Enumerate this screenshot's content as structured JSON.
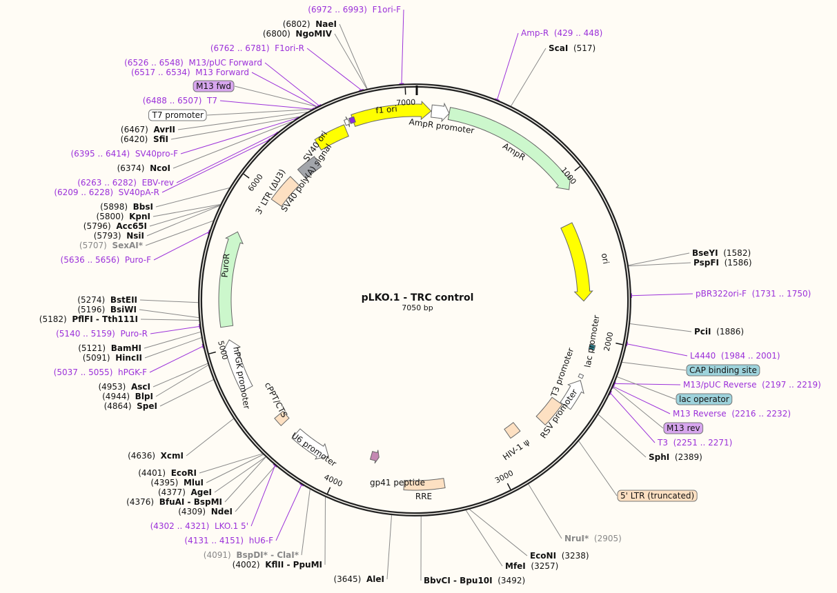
{
  "title": "pLKO.1 - TRC control",
  "length_label": "7050 bp",
  "total_bp": 7050,
  "colors": {
    "site_line": "#888888",
    "primer": "#9b30d9",
    "backbone": "#222222",
    "background": "#fffcf5"
  },
  "ticks": [
    "1000",
    "2000",
    "3000",
    "4000",
    "5000",
    "6000",
    "7000"
  ],
  "annotations": [
    {
      "kind": "primer",
      "name": "Amp-R",
      "loc": "(429 .. 448)",
      "pos": 438
    },
    {
      "kind": "site",
      "name": "ScaI",
      "loc": "(517)",
      "pos": 517
    },
    {
      "kind": "site",
      "name": "BseYI",
      "loc": "(1582)",
      "pos": 1582
    },
    {
      "kind": "site",
      "name": "PspFI",
      "loc": "(1586)",
      "pos": 1586
    },
    {
      "kind": "primer",
      "name": "pBR322ori-F",
      "loc": "(1731 .. 1750)",
      "pos": 1740
    },
    {
      "kind": "site",
      "name": "PciI",
      "loc": "(1886)",
      "pos": 1886
    },
    {
      "kind": "primer",
      "name": "L4440",
      "loc": "(1984 .. 2001)",
      "pos": 1992
    },
    {
      "kind": "box",
      "name": "CAP binding site",
      "pos": 2090,
      "color": "#9ed3dc"
    },
    {
      "kind": "primer",
      "name": "M13/pUC Reverse",
      "loc": "(2197 .. 2219)",
      "pos": 2208
    },
    {
      "kind": "box",
      "name": "lac operator",
      "pos": 2170,
      "color": "#9ed3dc"
    },
    {
      "kind": "primer",
      "name": "M13 Reverse",
      "loc": "(2216 .. 2232)",
      "pos": 2224
    },
    {
      "kind": "box",
      "name": "M13 rev",
      "pos": 2228,
      "color": "#d7a6ee"
    },
    {
      "kind": "primer",
      "name": "T3",
      "loc": "(2251 .. 2271)",
      "pos": 2261
    },
    {
      "kind": "site",
      "name": "SphI",
      "loc": "(2389)",
      "pos": 2389
    },
    {
      "kind": "box",
      "name": "5' LTR (truncated)",
      "pos": 2560,
      "color": "#fde0c2"
    },
    {
      "kind": "site",
      "name": "NruI*",
      "loc": "(2905)",
      "pos": 2905,
      "gray": true
    },
    {
      "kind": "site",
      "name": "EcoNI",
      "loc": "(3238)",
      "pos": 3238
    },
    {
      "kind": "site",
      "name": "MfeI",
      "loc": "(3257)",
      "pos": 3257
    },
    {
      "kind": "site",
      "name": "BbvCI - Bpu10I",
      "loc": "(3492)",
      "pos": 3492
    },
    {
      "kind": "site",
      "name": "AleI",
      "loc": "(3645)",
      "pos": 3645
    },
    {
      "kind": "primer",
      "name": "F1ori-F",
      "loc": "(6972 .. 6993)",
      "pos": 6982
    },
    {
      "kind": "site",
      "name": "NaeI",
      "loc": "(6802)",
      "pos": 6802
    },
    {
      "kind": "site",
      "name": "NgoMIV",
      "loc": "(6800)",
      "pos": 6800
    },
    {
      "kind": "primer",
      "name": "F1ori-R",
      "loc": "(6762 .. 6781)",
      "pos": 6771
    },
    {
      "kind": "primer",
      "name": "M13/pUC Forward",
      "loc": "(6526 .. 6548)",
      "pos": 6537
    },
    {
      "kind": "primer",
      "name": "M13 Forward",
      "loc": "(6517 .. 6534)",
      "pos": 6525
    },
    {
      "kind": "box",
      "name": "M13 fwd",
      "pos": 6525,
      "color": "#d7a6ee"
    },
    {
      "kind": "primer",
      "name": "T7",
      "loc": "(6488 .. 6507)",
      "pos": 6497
    },
    {
      "kind": "box",
      "name": "T7 promoter",
      "pos": 6495,
      "color": "#ffffff"
    },
    {
      "kind": "site",
      "name": "AvrII",
      "loc": "(6467)",
      "pos": 6467
    },
    {
      "kind": "site",
      "name": "SfiI",
      "loc": "(6420)",
      "pos": 6420
    },
    {
      "kind": "primer",
      "name": "SV40pro-F",
      "loc": "(6395 .. 6414)",
      "pos": 6404
    },
    {
      "kind": "site",
      "name": "NcoI",
      "loc": "(6374)",
      "pos": 6374
    },
    {
      "kind": "primer",
      "name": "EBV-rev",
      "loc": "(6263 .. 6282)",
      "pos": 6272
    },
    {
      "kind": "primer",
      "name": "SV40pA-R",
      "loc": "(6209 .. 6228)",
      "pos": 6218
    },
    {
      "kind": "site",
      "name": "BbsI",
      "loc": "(5898)",
      "pos": 5898
    },
    {
      "kind": "site",
      "name": "KpnI",
      "loc": "(5800)",
      "pos": 5800
    },
    {
      "kind": "site",
      "name": "Acc65I",
      "loc": "(5796)",
      "pos": 5796
    },
    {
      "kind": "site",
      "name": "NsiI",
      "loc": "(5793)",
      "pos": 5793
    },
    {
      "kind": "site",
      "name": "SexAI*",
      "loc": "(5707)",
      "pos": 5707,
      "gray": true
    },
    {
      "kind": "primer",
      "name": "Puro-F",
      "loc": "(5636 .. 5656)",
      "pos": 5646
    },
    {
      "kind": "site",
      "name": "BstEII",
      "loc": "(5274)",
      "pos": 5274
    },
    {
      "kind": "site",
      "name": "BsiWI",
      "loc": "(5196)",
      "pos": 5196
    },
    {
      "kind": "site",
      "name": "PflFI - Tth111I",
      "loc": "(5182)",
      "pos": 5182
    },
    {
      "kind": "primer",
      "name": "Puro-R",
      "loc": "(5140 .. 5159)",
      "pos": 5150
    },
    {
      "kind": "site",
      "name": "BamHI",
      "loc": "(5121)",
      "pos": 5121
    },
    {
      "kind": "site",
      "name": "HincII",
      "loc": "(5091)",
      "pos": 5091
    },
    {
      "kind": "primer",
      "name": "hPGK-F",
      "loc": "(5037 .. 5055)",
      "pos": 5046
    },
    {
      "kind": "site",
      "name": "AscI",
      "loc": "(4953)",
      "pos": 4953
    },
    {
      "kind": "site",
      "name": "BlpI",
      "loc": "(4944)",
      "pos": 4944
    },
    {
      "kind": "site",
      "name": "SpeI",
      "loc": "(4864)",
      "pos": 4864
    },
    {
      "kind": "site",
      "name": "XcmI",
      "loc": "(4636)",
      "pos": 4636
    },
    {
      "kind": "site",
      "name": "EcoRI",
      "loc": "(4401)",
      "pos": 4401
    },
    {
      "kind": "site",
      "name": "MluI",
      "loc": "(4395)",
      "pos": 4395
    },
    {
      "kind": "site",
      "name": "AgeI",
      "loc": "(4377)",
      "pos": 4377
    },
    {
      "kind": "site",
      "name": "BfuAI - BspMI",
      "loc": "(4376)",
      "pos": 4376
    },
    {
      "kind": "site",
      "name": "NdeI",
      "loc": "(4309)",
      "pos": 4309
    },
    {
      "kind": "primer",
      "name": "LKO.1 5'",
      "loc": "(4302 .. 4321)",
      "pos": 4311
    },
    {
      "kind": "primer",
      "name": "hU6-F",
      "loc": "(4131 .. 4151)",
      "pos": 4141
    },
    {
      "kind": "site",
      "name": "BspDI* - ClaI*",
      "loc": "(4091)",
      "pos": 4091,
      "gray": true
    },
    {
      "kind": "site",
      "name": "KflII - PpuMI",
      "loc": "(4002)",
      "pos": 4002
    }
  ],
  "features": [
    {
      "name": "f1 ori",
      "start": 6679,
      "end": 97,
      "color": "#ffff00",
      "dir": 1
    },
    {
      "name": "AmpR promoter",
      "start": 100,
      "end": 205,
      "color": "#ffffff",
      "dir": 1
    },
    {
      "name": "AmpR",
      "start": 205,
      "end": 1066,
      "color": "#ccf7cc",
      "dir": 1
    },
    {
      "name": "ori",
      "start": 1250,
      "end": 1770,
      "color": "#ffff00",
      "dir": 1
    },
    {
      "name": "lac promoter",
      "start": 2040,
      "end": 2070,
      "color": "#2b7f8c",
      "dir": 0
    },
    {
      "name": "T3 promoter",
      "start": 2235,
      "end": 2255,
      "color": "#ffffff",
      "dir": 0
    },
    {
      "name": "RSV promoter",
      "start": 2270,
      "end": 2450,
      "color": "#ffffff",
      "dir": -1
    },
    {
      "name": "5' LTR (truncated)",
      "start": 2455,
      "end": 2620,
      "color": "#fde0c2",
      "dir": 0
    },
    {
      "name": "HIV-1 ψ",
      "start": 2765,
      "end": 2845,
      "color": "#fde0c2",
      "dir": 0
    },
    {
      "name": "RRE",
      "start": 3345,
      "end": 3590,
      "color": "#fde0c2",
      "dir": 0
    },
    {
      "name": "gp41 peptide",
      "start": 3775,
      "end": 3830,
      "color": "#c489b3",
      "dir": -1
    },
    {
      "name": "cPPT/CTS",
      "start": 4440,
      "end": 4500,
      "color": "#fde0c2",
      "dir": 0
    },
    {
      "name": "U6 promoter",
      "start": 4090,
      "end": 4340,
      "color": "#ffffff",
      "dir": -1
    },
    {
      "name": "hPGK promoter",
      "start": 4740,
      "end": 5050,
      "color": "#ffffff",
      "dir": 1
    },
    {
      "name": "PuroR",
      "start": 5130,
      "end": 5700,
      "color": "#ccf7cc",
      "dir": 1
    },
    {
      "name": "3' LTR (ΔU3)",
      "start": 5975,
      "end": 6165,
      "color": "#fde0c2",
      "dir": 0
    },
    {
      "name": "SV40 poly(A) signal",
      "start": 6230,
      "end": 6365,
      "color": "#a3a6ab",
      "dir": 0
    },
    {
      "name": "SV40 ori",
      "start": 6425,
      "end": 6620,
      "color": "#ffff00",
      "dir": 0
    },
    {
      "name": "T7 promoter",
      "start": 6630,
      "end": 6655,
      "color": "#ffffff",
      "dir": 1
    },
    {
      "name": "M13 fwd",
      "start": 6660,
      "end": 6690,
      "color": "#8a2be2",
      "dir": 0
    }
  ]
}
